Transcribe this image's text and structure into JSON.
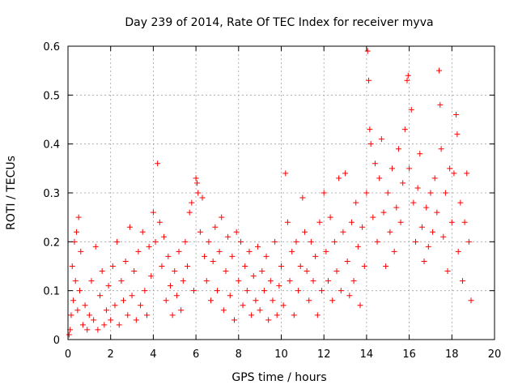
{
  "chart_data": {
    "type": "scatter",
    "title": "Day 239 of 2014, Rate Of TEC Index for receiver myva",
    "xlabel": "GPS time / hours",
    "ylabel": "ROTI / TECUs",
    "xlim": [
      0,
      20
    ],
    "ylim": [
      0,
      0.6
    ],
    "x_ticks": [
      "0",
      "2",
      "4",
      "6",
      "8",
      "10",
      "12",
      "14",
      "16",
      "18",
      "20"
    ],
    "y_ticks": [
      "0",
      "0.1",
      "0.2",
      "0.3",
      "0.4",
      "0.5",
      "0.6"
    ],
    "grid": true,
    "marker": "+",
    "color": "#ff0000",
    "series": [
      {
        "name": "",
        "points": [
          [
            0.05,
            0.01
          ],
          [
            0.1,
            0.02
          ],
          [
            0.15,
            0.05
          ],
          [
            0.2,
            0.15
          ],
          [
            0.25,
            0.08
          ],
          [
            0.3,
            0.2
          ],
          [
            0.35,
            0.12
          ],
          [
            0.4,
            0.22
          ],
          [
            0.45,
            0.06
          ],
          [
            0.5,
            0.25
          ],
          [
            0.55,
            0.1
          ],
          [
            0.6,
            0.18
          ],
          [
            0.7,
            0.03
          ],
          [
            0.8,
            0.07
          ],
          [
            0.9,
            0.02
          ],
          [
            1.0,
            0.05
          ],
          [
            1.1,
            0.12
          ],
          [
            1.2,
            0.04
          ],
          [
            1.3,
            0.19
          ],
          [
            1.4,
            0.02
          ],
          [
            1.5,
            0.09
          ],
          [
            1.6,
            0.14
          ],
          [
            1.7,
            0.03
          ],
          [
            1.8,
            0.06
          ],
          [
            1.9,
            0.11
          ],
          [
            2.0,
            0.04
          ],
          [
            2.1,
            0.15
          ],
          [
            2.2,
            0.07
          ],
          [
            2.3,
            0.2
          ],
          [
            2.4,
            0.03
          ],
          [
            2.5,
            0.12
          ],
          [
            2.6,
            0.08
          ],
          [
            2.7,
            0.16
          ],
          [
            2.8,
            0.05
          ],
          [
            2.9,
            0.23
          ],
          [
            3.0,
            0.09
          ],
          [
            3.1,
            0.14
          ],
          [
            3.2,
            0.04
          ],
          [
            3.3,
            0.18
          ],
          [
            3.4,
            0.07
          ],
          [
            3.5,
            0.22
          ],
          [
            3.6,
            0.1
          ],
          [
            3.7,
            0.05
          ],
          [
            3.8,
            0.19
          ],
          [
            3.9,
            0.13
          ],
          [
            4.0,
            0.26
          ],
          [
            4.1,
            0.2
          ],
          [
            4.2,
            0.36
          ],
          [
            4.3,
            0.24
          ],
          [
            4.4,
            0.15
          ],
          [
            4.5,
            0.21
          ],
          [
            4.6,
            0.08
          ],
          [
            4.7,
            0.17
          ],
          [
            4.8,
            0.11
          ],
          [
            4.9,
            0.05
          ],
          [
            5.0,
            0.14
          ],
          [
            5.1,
            0.09
          ],
          [
            5.2,
            0.18
          ],
          [
            5.3,
            0.06
          ],
          [
            5.4,
            0.12
          ],
          [
            5.5,
            0.2
          ],
          [
            5.6,
            0.15
          ],
          [
            5.7,
            0.26
          ],
          [
            5.8,
            0.28
          ],
          [
            5.9,
            0.1
          ],
          [
            6.0,
            0.33
          ],
          [
            6.05,
            0.32
          ],
          [
            6.1,
            0.3
          ],
          [
            6.2,
            0.22
          ],
          [
            6.3,
            0.29
          ],
          [
            6.4,
            0.17
          ],
          [
            6.5,
            0.12
          ],
          [
            6.6,
            0.2
          ],
          [
            6.7,
            0.08
          ],
          [
            6.8,
            0.16
          ],
          [
            6.9,
            0.23
          ],
          [
            7.0,
            0.1
          ],
          [
            7.1,
            0.18
          ],
          [
            7.2,
            0.25
          ],
          [
            7.3,
            0.06
          ],
          [
            7.4,
            0.14
          ],
          [
            7.5,
            0.21
          ],
          [
            7.6,
            0.09
          ],
          [
            7.7,
            0.17
          ],
          [
            7.8,
            0.04
          ],
          [
            7.9,
            0.22
          ],
          [
            8.0,
            0.12
          ],
          [
            8.1,
            0.2
          ],
          [
            8.2,
            0.07
          ],
          [
            8.3,
            0.15
          ],
          [
            8.4,
            0.1
          ],
          [
            8.5,
            0.18
          ],
          [
            8.6,
            0.05
          ],
          [
            8.7,
            0.13
          ],
          [
            8.8,
            0.08
          ],
          [
            8.9,
            0.19
          ],
          [
            9.0,
            0.06
          ],
          [
            9.1,
            0.14
          ],
          [
            9.2,
            0.1
          ],
          [
            9.3,
            0.17
          ],
          [
            9.4,
            0.04
          ],
          [
            9.5,
            0.12
          ],
          [
            9.6,
            0.08
          ],
          [
            9.7,
            0.2
          ],
          [
            9.8,
            0.05
          ],
          [
            9.9,
            0.11
          ],
          [
            10.0,
            0.15
          ],
          [
            10.1,
            0.07
          ],
          [
            10.2,
            0.34
          ],
          [
            10.3,
            0.24
          ],
          [
            10.4,
            0.12
          ],
          [
            10.5,
            0.18
          ],
          [
            10.6,
            0.05
          ],
          [
            10.7,
            0.2
          ],
          [
            10.8,
            0.1
          ],
          [
            10.9,
            0.15
          ],
          [
            11.0,
            0.29
          ],
          [
            11.1,
            0.22
          ],
          [
            11.2,
            0.14
          ],
          [
            11.3,
            0.08
          ],
          [
            11.4,
            0.2
          ],
          [
            11.5,
            0.12
          ],
          [
            11.6,
            0.17
          ],
          [
            11.7,
            0.05
          ],
          [
            11.8,
            0.24
          ],
          [
            11.9,
            0.1
          ],
          [
            12.0,
            0.3
          ],
          [
            12.1,
            0.18
          ],
          [
            12.2,
            0.12
          ],
          [
            12.3,
            0.25
          ],
          [
            12.4,
            0.08
          ],
          [
            12.5,
            0.2
          ],
          [
            12.6,
            0.14
          ],
          [
            12.7,
            0.33
          ],
          [
            12.8,
            0.1
          ],
          [
            12.9,
            0.22
          ],
          [
            13.0,
            0.34
          ],
          [
            13.1,
            0.16
          ],
          [
            13.2,
            0.09
          ],
          [
            13.3,
            0.24
          ],
          [
            13.4,
            0.12
          ],
          [
            13.5,
            0.28
          ],
          [
            13.6,
            0.19
          ],
          [
            13.7,
            0.07
          ],
          [
            13.8,
            0.23
          ],
          [
            13.9,
            0.15
          ],
          [
            14.0,
            0.3
          ],
          [
            14.05,
            0.59
          ],
          [
            14.1,
            0.53
          ],
          [
            14.15,
            0.43
          ],
          [
            14.2,
            0.4
          ],
          [
            14.3,
            0.25
          ],
          [
            14.4,
            0.36
          ],
          [
            14.5,
            0.2
          ],
          [
            14.6,
            0.33
          ],
          [
            14.7,
            0.41
          ],
          [
            14.8,
            0.26
          ],
          [
            14.9,
            0.15
          ],
          [
            15.0,
            0.3
          ],
          [
            15.1,
            0.22
          ],
          [
            15.2,
            0.35
          ],
          [
            15.3,
            0.18
          ],
          [
            15.4,
            0.27
          ],
          [
            15.5,
            0.39
          ],
          [
            15.6,
            0.24
          ],
          [
            15.7,
            0.32
          ],
          [
            15.8,
            0.43
          ],
          [
            15.9,
            0.53
          ],
          [
            15.95,
            0.54
          ],
          [
            16.0,
            0.35
          ],
          [
            16.1,
            0.47
          ],
          [
            16.2,
            0.28
          ],
          [
            16.3,
            0.2
          ],
          [
            16.4,
            0.31
          ],
          [
            16.5,
            0.38
          ],
          [
            16.6,
            0.23
          ],
          [
            16.7,
            0.16
          ],
          [
            16.8,
            0.27
          ],
          [
            16.9,
            0.19
          ],
          [
            17.0,
            0.3
          ],
          [
            17.1,
            0.22
          ],
          [
            17.2,
            0.33
          ],
          [
            17.3,
            0.26
          ],
          [
            17.4,
            0.55
          ],
          [
            17.45,
            0.48
          ],
          [
            17.5,
            0.39
          ],
          [
            17.6,
            0.21
          ],
          [
            17.7,
            0.3
          ],
          [
            17.8,
            0.14
          ],
          [
            17.9,
            0.35
          ],
          [
            18.0,
            0.24
          ],
          [
            18.1,
            0.34
          ],
          [
            18.2,
            0.46
          ],
          [
            18.25,
            0.42
          ],
          [
            18.3,
            0.18
          ],
          [
            18.4,
            0.28
          ],
          [
            18.5,
            0.12
          ],
          [
            18.6,
            0.24
          ],
          [
            18.7,
            0.34
          ],
          [
            18.8,
            0.2
          ],
          [
            18.9,
            0.08
          ]
        ]
      }
    ]
  }
}
